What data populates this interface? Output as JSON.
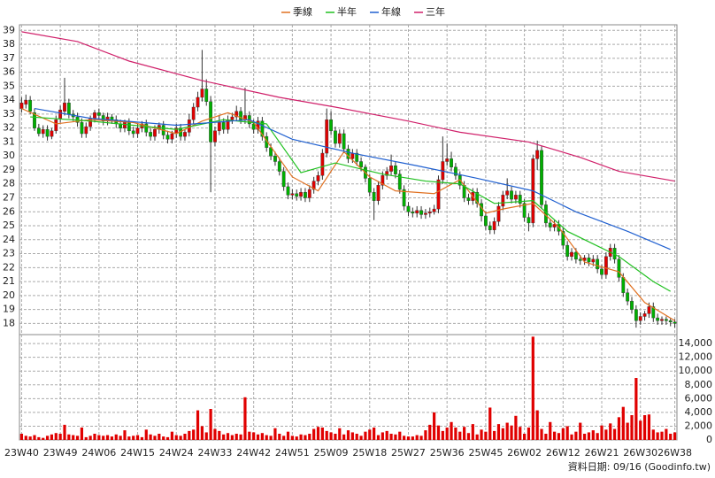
{
  "chart_data": {
    "type": "candlestick",
    "legend_position": "top",
    "grid": true,
    "categories": [
      "23W40",
      null,
      null,
      null,
      null,
      null,
      null,
      null,
      null,
      "23W49",
      null,
      null,
      null,
      null,
      null,
      null,
      null,
      null,
      "24W06",
      null,
      null,
      null,
      null,
      null,
      null,
      null,
      null,
      "24W15",
      null,
      null,
      null,
      null,
      null,
      null,
      null,
      null,
      "24W24",
      null,
      null,
      null,
      null,
      null,
      null,
      null,
      null,
      "24W33",
      null,
      null,
      null,
      null,
      null,
      null,
      null,
      null,
      "24W42",
      null,
      null,
      null,
      null,
      null,
      null,
      null,
      null,
      "24W51",
      null,
      null,
      null,
      null,
      null,
      null,
      null,
      null,
      "25W09",
      null,
      null,
      null,
      null,
      null,
      null,
      null,
      null,
      "25W18",
      null,
      null,
      null,
      null,
      null,
      null,
      null,
      null,
      "25W27",
      null,
      null,
      null,
      null,
      null,
      null,
      null,
      null,
      "25W36",
      null,
      null,
      null,
      null,
      null,
      null,
      null,
      null,
      "25W45",
      null,
      null,
      null,
      null,
      null,
      null,
      null,
      null,
      "26W02",
      null,
      null,
      null,
      null,
      null,
      null,
      null,
      null,
      "26W12",
      null,
      null,
      null,
      null,
      null,
      null,
      null,
      null,
      "26W21",
      null,
      null,
      null,
      null,
      null,
      null,
      null,
      null,
      "26W30",
      null,
      null,
      null,
      null,
      null,
      null,
      null,
      "26W38"
    ],
    "open": [
      33.4,
      33.7,
      34.0,
      33.1,
      32.0,
      31.6,
      31.9,
      31.4,
      31.8,
      32.7,
      33.2,
      33.8,
      33.0,
      32.8,
      32.4,
      31.6,
      32.1,
      32.7,
      33.1,
      32.9,
      32.5,
      32.8,
      32.6,
      32.3,
      32.0,
      32.4,
      31.8,
      31.6,
      32.0,
      32.3,
      31.7,
      31.4,
      31.9,
      32.2,
      31.5,
      31.2,
      31.6,
      32.0,
      31.4,
      31.7,
      32.6,
      33.5,
      34.2,
      34.8,
      33.9,
      31.0,
      31.8,
      32.4,
      31.9,
      32.6,
      32.8,
      33.2,
      32.6,
      32.9,
      32.3,
      31.9,
      32.5,
      31.4,
      30.6,
      30.0,
      29.6,
      28.9,
      27.8,
      27.2,
      27.3,
      27.1,
      27.4,
      27.0,
      27.6,
      28.2,
      28.6,
      30.2,
      32.6,
      31.8,
      30.9,
      31.6,
      30.5,
      29.8,
      30.2,
      29.6,
      29.2,
      28.4,
      27.4,
      26.8,
      27.9,
      28.6,
      28.9,
      29.3,
      28.7,
      27.6,
      26.4,
      26.0,
      25.9,
      26.1,
      25.8,
      25.9,
      26.0,
      26.2,
      28.3,
      29.6,
      29.8,
      29.2,
      28.6,
      27.9,
      27.0,
      26.8,
      27.4,
      26.6,
      25.7,
      25.0,
      24.7,
      25.3,
      26.4,
      27.2,
      27.5,
      26.9,
      27.2,
      26.6,
      25.6,
      25.2,
      29.8,
      30.4,
      26.5,
      25.2,
      24.9,
      25.1,
      24.6,
      23.6,
      22.8,
      23.1,
      22.6,
      22.5,
      22.7,
      22.4,
      22.6,
      21.9,
      21.5,
      22.8,
      23.4,
      22.6,
      21.3,
      20.2,
      19.6,
      19.0,
      18.2,
      18.5,
      18.7,
      19.2,
      18.4,
      18.2,
      18.3,
      18.2,
      18.1
    ],
    "high": [
      34.2,
      34.4,
      34.3,
      33.4,
      32.3,
      32.2,
      32.2,
      32.0,
      32.9,
      33.6,
      35.6,
      34.1,
      33.3,
      33.1,
      32.7,
      32.4,
      32.9,
      33.3,
      33.4,
      33.1,
      33.1,
      33.0,
      32.9,
      32.6,
      32.6,
      32.7,
      32.1,
      32.3,
      32.5,
      32.6,
      32.0,
      32.2,
      32.4,
      32.5,
      31.8,
      31.8,
      32.3,
      32.3,
      31.9,
      33.0,
      33.8,
      34.6,
      37.6,
      35.5,
      34.3,
      32.1,
      32.9,
      32.7,
      32.9,
      33.1,
      33.6,
      33.5,
      34.9,
      33.2,
      32.6,
      32.8,
      32.8,
      31.7,
      30.9,
      30.3,
      29.9,
      29.2,
      28.1,
      27.6,
      27.6,
      27.7,
      27.7,
      27.9,
      28.5,
      28.9,
      30.5,
      33.4,
      33.2,
      32.1,
      31.9,
      31.9,
      30.8,
      30.5,
      30.5,
      29.9,
      29.4,
      28.7,
      27.7,
      28.2,
      28.9,
      29.2,
      30.1,
      29.6,
      29.0,
      27.9,
      26.7,
      26.3,
      26.4,
      26.4,
      26.2,
      26.3,
      26.5,
      28.6,
      31.4,
      30.9,
      30.3,
      29.5,
      28.9,
      28.2,
      27.3,
      27.7,
      27.7,
      26.9,
      26.0,
      25.3,
      25.6,
      26.7,
      27.5,
      28.4,
      27.8,
      27.5,
      27.5,
      26.9,
      25.9,
      30.1,
      31.1,
      30.7,
      26.8,
      25.5,
      25.4,
      25.4,
      24.9,
      23.9,
      23.4,
      23.4,
      22.9,
      22.9,
      23.0,
      22.9,
      22.9,
      22.2,
      23.1,
      23.7,
      23.7,
      22.9,
      21.6,
      20.5,
      19.9,
      19.3,
      18.8,
      18.9,
      19.5,
      19.5,
      18.7,
      18.5,
      18.5,
      18.4,
      18.3
    ],
    "low": [
      33.1,
      33.4,
      33.0,
      31.8,
      31.4,
      31.3,
      31.1,
      31.2,
      31.6,
      32.4,
      32.9,
      32.7,
      32.5,
      32.1,
      31.3,
      31.3,
      31.8,
      32.4,
      32.6,
      32.2,
      32.2,
      32.3,
      32.0,
      31.7,
      31.7,
      31.5,
      31.3,
      31.3,
      31.7,
      31.4,
      31.1,
      31.1,
      31.6,
      31.2,
      30.9,
      30.9,
      31.3,
      31.1,
      31.1,
      31.4,
      32.3,
      33.2,
      33.9,
      33.6,
      27.4,
      30.7,
      31.5,
      31.6,
      31.6,
      32.3,
      32.5,
      32.3,
      32.3,
      32.0,
      31.6,
      31.6,
      31.1,
      30.3,
      29.7,
      29.3,
      28.6,
      27.5,
      26.9,
      26.9,
      26.8,
      26.8,
      26.7,
      26.7,
      27.3,
      27.9,
      28.3,
      29.9,
      31.5,
      30.6,
      30.6,
      30.2,
      29.5,
      29.5,
      29.3,
      28.9,
      28.1,
      27.1,
      25.4,
      26.5,
      27.6,
      28.3,
      28.6,
      28.4,
      27.3,
      26.1,
      25.7,
      25.6,
      25.6,
      25.5,
      25.5,
      25.6,
      25.8,
      25.9,
      28.0,
      29.3,
      28.9,
      28.3,
      27.6,
      26.7,
      26.5,
      26.5,
      26.3,
      25.3,
      24.7,
      24.4,
      24.4,
      25.0,
      26.1,
      26.9,
      26.6,
      26.6,
      26.3,
      25.3,
      24.6,
      24.9,
      29.0,
      26.2,
      24.9,
      24.6,
      24.6,
      24.3,
      23.3,
      22.5,
      22.5,
      22.3,
      22.2,
      22.2,
      22.1,
      22.1,
      21.6,
      21.2,
      21.2,
      22.5,
      22.3,
      21.0,
      19.9,
      19.3,
      18.7,
      17.7,
      17.9,
      18.2,
      18.4,
      18.1,
      17.9,
      17.9,
      17.9,
      17.8,
      17.7
    ],
    "close": [
      33.8,
      34.0,
      33.2,
      32.0,
      31.6,
      31.9,
      31.4,
      31.8,
      32.6,
      33.3,
      33.8,
      33.0,
      32.8,
      32.4,
      31.6,
      32.1,
      32.7,
      33.1,
      32.9,
      32.5,
      32.8,
      32.6,
      32.3,
      32.0,
      32.4,
      31.8,
      31.6,
      32.0,
      32.3,
      31.7,
      31.4,
      31.9,
      32.2,
      31.5,
      31.2,
      31.6,
      32.0,
      31.4,
      31.7,
      32.6,
      33.5,
      34.2,
      34.8,
      33.9,
      31.0,
      31.8,
      32.4,
      31.9,
      32.6,
      32.8,
      33.2,
      32.6,
      32.9,
      32.3,
      31.9,
      32.5,
      31.4,
      30.6,
      30.0,
      29.6,
      28.9,
      27.8,
      27.2,
      27.3,
      27.1,
      27.4,
      27.0,
      27.6,
      28.2,
      28.6,
      30.2,
      32.6,
      31.8,
      30.9,
      31.6,
      30.5,
      29.8,
      30.2,
      29.6,
      29.2,
      28.4,
      27.4,
      26.8,
      27.9,
      28.6,
      28.9,
      29.3,
      28.7,
      27.6,
      26.4,
      26.0,
      25.9,
      26.1,
      25.8,
      25.9,
      26.0,
      26.2,
      28.3,
      29.6,
      29.8,
      29.2,
      28.6,
      27.9,
      27.0,
      26.8,
      27.4,
      26.6,
      25.7,
      25.0,
      24.7,
      25.3,
      26.4,
      27.2,
      27.5,
      26.9,
      27.2,
      26.6,
      25.6,
      25.2,
      29.8,
      30.4,
      26.5,
      25.2,
      24.9,
      25.1,
      24.6,
      23.6,
      22.8,
      23.1,
      22.6,
      22.5,
      22.7,
      22.4,
      22.6,
      21.9,
      21.5,
      22.8,
      23.4,
      22.6,
      21.3,
      20.2,
      19.6,
      19.0,
      18.2,
      18.5,
      18.7,
      19.2,
      18.4,
      18.2,
      18.3,
      18.2,
      18.1,
      18.0
    ],
    "up_color": "#e00000",
    "down_color": "#00b000",
    "wick_color": "#333333",
    "ylim": [
      17.2,
      39.4
    ],
    "yticks": [
      18,
      19,
      20,
      21,
      22,
      23,
      24,
      25,
      26,
      27,
      28,
      29,
      30,
      31,
      32,
      33,
      34,
      35,
      36,
      37,
      38,
      39
    ],
    "lines": [
      {
        "name": "季線",
        "color": "#e07020",
        "x": [
          0,
          8,
          16,
          26,
          36,
          42,
          48,
          54,
          63,
          69,
          75,
          81,
          87,
          96,
          102,
          108,
          112,
          119,
          125,
          131,
          139,
          145,
          152
        ],
        "values": [
          33.4,
          32.3,
          32.6,
          32.4,
          31.6,
          32.5,
          33.1,
          32.4,
          28.5,
          27.5,
          30.3,
          28.5,
          27.5,
          27.3,
          28.3,
          25.9,
          26.2,
          26.6,
          24.9,
          22.4,
          21.7,
          19.5,
          18.2
        ]
      },
      {
        "name": "半年",
        "color": "#20c020",
        "x": [
          2,
          16,
          36,
          47,
          57,
          65,
          73,
          84,
          94,
          102,
          110,
          119,
          127,
          139,
          147,
          151
        ],
        "values": [
          32.8,
          32.5,
          31.9,
          32.6,
          32.3,
          28.8,
          29.5,
          28.7,
          28.2,
          28.0,
          26.6,
          26.8,
          24.6,
          22.8,
          21.0,
          20.3
        ]
      },
      {
        "name": "年線",
        "color": "#2060d0",
        "x": [
          3,
          16,
          36,
          53,
          63,
          77,
          92,
          106,
          119,
          129,
          141,
          151
        ],
        "values": [
          33.4,
          32.7,
          32.2,
          32.6,
          31.2,
          30.2,
          29.3,
          28.4,
          27.5,
          26.0,
          24.6,
          23.3
        ]
      },
      {
        "name": "三年",
        "color": "#d0206a",
        "x": [
          0,
          13,
          25,
          42,
          60,
          73,
          90,
          102,
          118,
          130,
          139,
          152
        ],
        "values": [
          38.9,
          38.2,
          36.8,
          35.4,
          34.2,
          33.5,
          32.5,
          31.7,
          31.0,
          29.9,
          28.9,
          28.2
        ]
      }
    ],
    "volume": {
      "color": "#e00000",
      "values": [
        900,
        600,
        500,
        700,
        400,
        300,
        600,
        800,
        1000,
        900,
        2200,
        800,
        700,
        600,
        1800,
        400,
        600,
        900,
        700,
        600,
        700,
        500,
        800,
        600,
        1400,
        500,
        600,
        700,
        400,
        1500,
        800,
        600,
        900,
        500,
        400,
        1200,
        700,
        600,
        900,
        1300,
        1500,
        4300,
        2000,
        1100,
        4500,
        1600,
        1300,
        800,
        1000,
        700,
        900,
        800,
        6200,
        1200,
        1100,
        800,
        1000,
        700,
        600,
        1700,
        900,
        600,
        1200,
        600,
        500,
        800,
        700,
        900,
        1600,
        1900,
        1800,
        1300,
        1100,
        900,
        1700,
        800,
        1400,
        1100,
        900,
        600,
        1200,
        1500,
        1800,
        700,
        1100,
        1300,
        900,
        800,
        1200,
        600,
        500,
        500,
        700,
        600,
        1400,
        2200,
        4000,
        2100,
        1300,
        1800,
        2600,
        1800,
        1200,
        1900,
        1000,
        2300,
        800,
        1500,
        1200,
        4700,
        1300,
        2300,
        1700,
        2500,
        2100,
        3500,
        1900,
        900,
        1800,
        15000,
        4300,
        1600,
        900,
        2600,
        1200,
        1000,
        1700,
        2000,
        800,
        1200,
        2500,
        900,
        1100,
        1400,
        1000,
        2100,
        1500,
        2400,
        1600,
        3300,
        4800,
        2500,
        3600,
        9000,
        2800,
        3600,
        3700,
        1500,
        1100,
        1200,
        1600,
        900,
        1100
      ],
      "ylim": [
        0,
        15300
      ],
      "yticks": [
        0,
        {
          "value": 2000,
          "label": "2,000"
        },
        {
          "value": 4000,
          "label": "4,000"
        },
        {
          "value": 6000,
          "label": "6,000"
        },
        {
          "value": 8000,
          "label": "8,000"
        },
        {
          "value": 10000,
          "label": "10,000"
        },
        {
          "value": 12000,
          "label": "12,000"
        },
        {
          "value": 14000,
          "label": "14,000"
        }
      ]
    },
    "footer": "資料日期: 09/16 (Goodinfo.tw)"
  }
}
